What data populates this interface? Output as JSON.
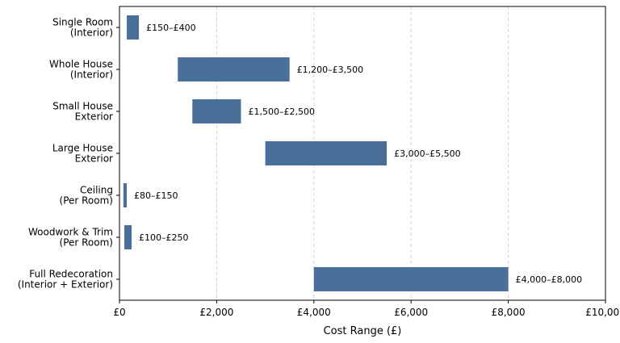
{
  "chart_data": {
    "type": "bar",
    "orientation": "horizontal",
    "title": "",
    "xlabel": "Cost Range (£)",
    "ylabel": "",
    "xlim": [
      0,
      10000
    ],
    "xticks": [
      0,
      2000,
      4000,
      6000,
      8000,
      10000
    ],
    "xtick_labels": [
      "£0",
      "£2,000",
      "£4,000",
      "£6,000",
      "£8,000",
      "£10,000"
    ],
    "grid": "vertical dashed",
    "bar_color": "#4a6f99",
    "categories": [
      {
        "label": [
          "Single Room",
          "(Interior)"
        ],
        "low": 150,
        "high": 400,
        "range_label": "£150–£400"
      },
      {
        "label": [
          "Whole House",
          "(Interior)"
        ],
        "low": 1200,
        "high": 3500,
        "range_label": "£1,200–£3,500"
      },
      {
        "label": [
          "Small House",
          "Exterior"
        ],
        "low": 1500,
        "high": 2500,
        "range_label": "£1,500–£2,500"
      },
      {
        "label": [
          "Large House",
          "Exterior"
        ],
        "low": 3000,
        "high": 5500,
        "range_label": "£3,000–£5,500"
      },
      {
        "label": [
          "Ceiling",
          "(Per Room)"
        ],
        "low": 80,
        "high": 150,
        "range_label": "£80–£150"
      },
      {
        "label": [
          "Woodwork & Trim",
          "(Per Room)"
        ],
        "low": 100,
        "high": 250,
        "range_label": "£100–£250"
      },
      {
        "label": [
          "Full Redecoration",
          "(Interior + Exterior)"
        ],
        "low": 4000,
        "high": 8000,
        "range_label": "£4,000–£8,000"
      }
    ]
  }
}
